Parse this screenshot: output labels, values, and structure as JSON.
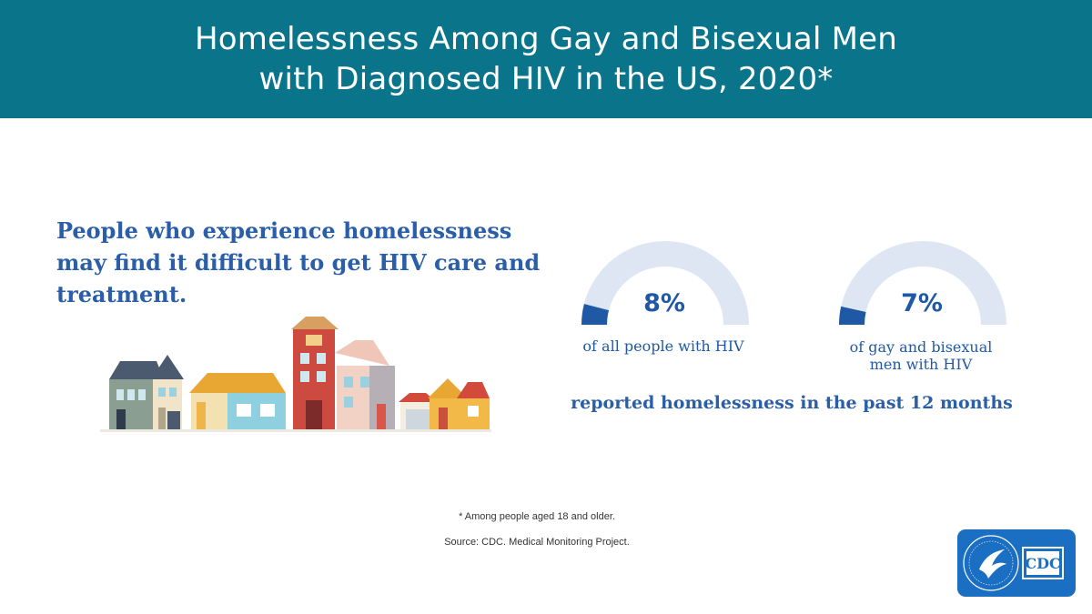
{
  "header": {
    "title_line1": "Homelessness Among Gay and Bisexual Men",
    "title_line2": "with Diagnosed HIV in the US, 2020*"
  },
  "lead_text": "People who experience homelessness may find it difficult to get HIV care and treatment.",
  "chart_data": {
    "type": "gauge",
    "range": [
      0,
      100
    ],
    "unit": "%",
    "items": [
      {
        "value": 8,
        "display": "8%",
        "label_lines": [
          "of all people with HIV"
        ]
      },
      {
        "value": 7,
        "display": "7%",
        "label_lines": [
          "of gay and bisexual",
          "men with HIV"
        ]
      }
    ],
    "caption": "reported homelessness in the past 12 months"
  },
  "footnote": "* Among people aged 18 and older.",
  "source": "Source: CDC. Medical Monitoring Project.",
  "logo": {
    "text": "CDC"
  },
  "colors": {
    "header_bg": "#09748a",
    "text_blue": "#2a5ea8",
    "gauge_fill": "#1f59a6",
    "gauge_track": "#dde6f2",
    "logo_bg": "#1b6fc2"
  },
  "icons": [
    "houses-illustration",
    "hhs-eagle-seal-icon"
  ]
}
